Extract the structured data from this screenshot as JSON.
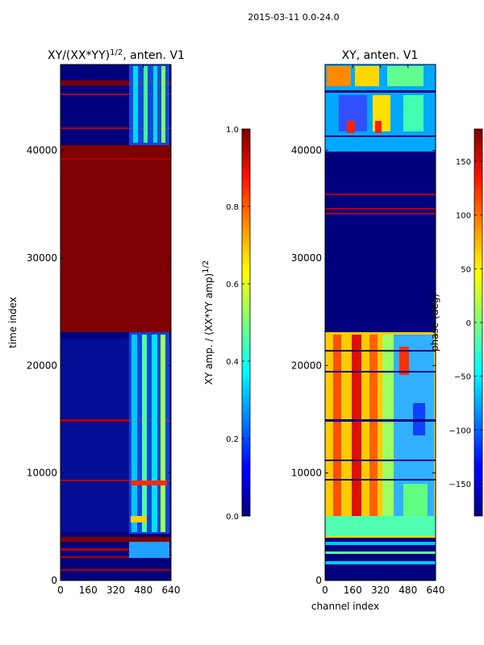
{
  "figure_title": "2015-03-11 0.0-24.0",
  "chart_data": [
    {
      "type": "heatmap",
      "title": "XY/(XX*YY)",
      "title_sup": "1/2",
      "title_suffix": ", anten. V1",
      "xlabel": "",
      "ylabel": "time index",
      "xlim": [
        0,
        640
      ],
      "ylim": [
        0,
        48000
      ],
      "xticks": [
        "0",
        "160",
        "320",
        "480",
        "640"
      ],
      "yticks": [
        "0",
        "10000",
        "20000",
        "30000",
        "40000"
      ],
      "colorbar": {
        "label": "XY amp. / (XX*YY amp)",
        "label_sup": "1/2",
        "range": [
          0.0,
          1.0
        ],
        "ticks": [
          "0.0",
          "0.2",
          "0.4",
          "0.6",
          "0.8",
          "1.0"
        ],
        "colormap": "jet"
      }
    },
    {
      "type": "heatmap",
      "title": "XY, anten. V1",
      "xlabel": "channel index",
      "ylabel": "",
      "xlim": [
        0,
        640
      ],
      "ylim": [
        0,
        48000
      ],
      "xticks": [
        "0",
        "160",
        "320",
        "480",
        "640"
      ],
      "yticks": [
        "0",
        "10000",
        "20000",
        "30000",
        "40000"
      ],
      "colorbar": {
        "label": "phase (deg)",
        "range": [
          -180,
          180
        ],
        "ticks": [
          "−150",
          "−100",
          "−50",
          "0",
          "50",
          "100",
          "150"
        ],
        "colormap": "jet"
      }
    }
  ],
  "colors": {
    "jet_low": "#00007f",
    "jet_high": "#7f0000",
    "axis": "#000000",
    "background": "#ffffff"
  }
}
